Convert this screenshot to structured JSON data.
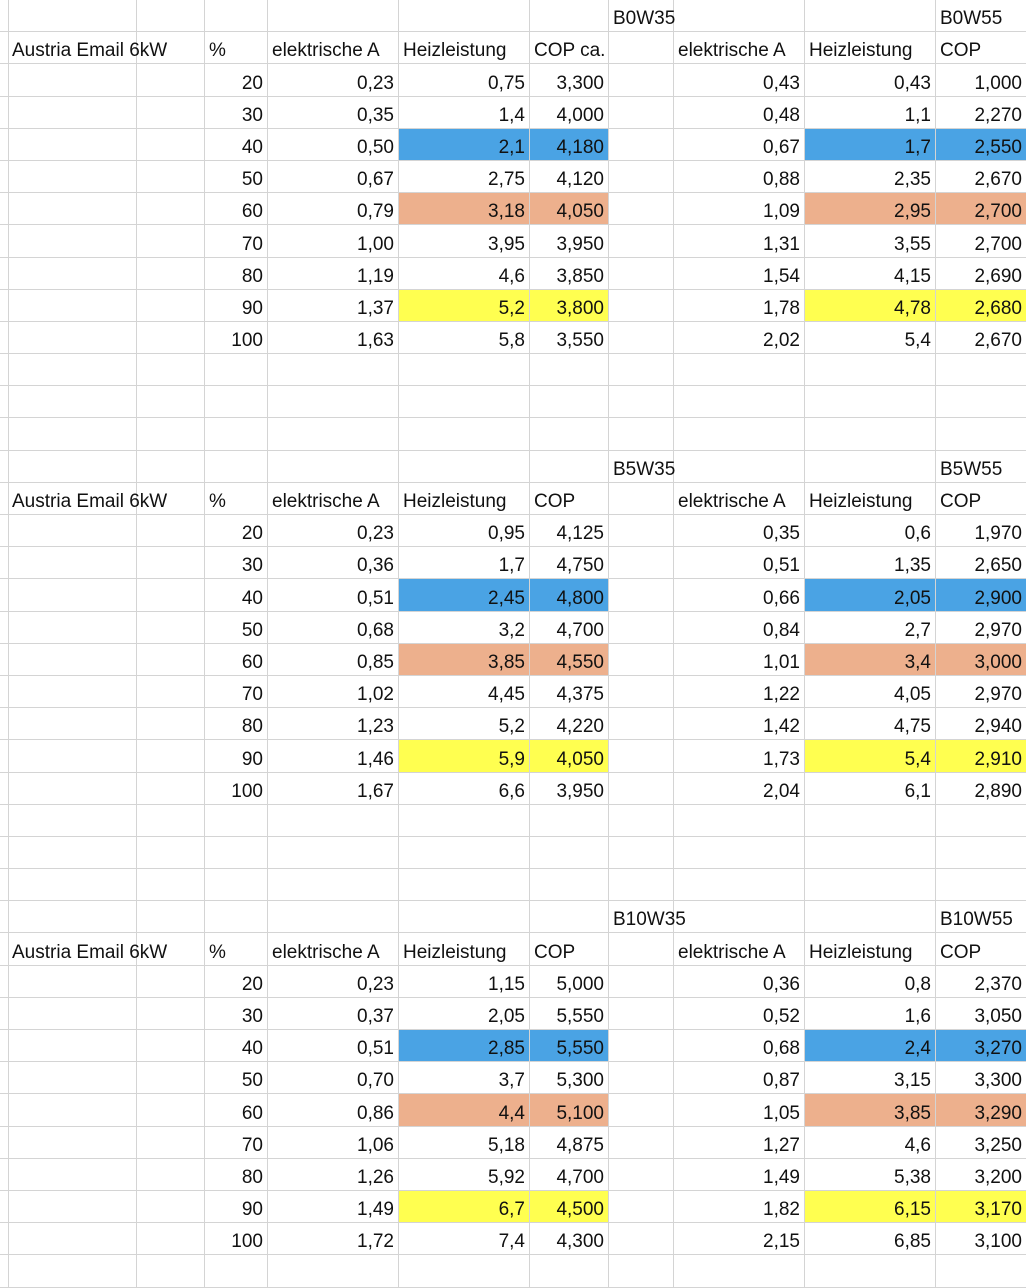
{
  "colors": {
    "highlight_40": "#4aa3e4",
    "highlight_60": "#edb08d",
    "highlight_90": "#ffff50",
    "gridline": "#d4d4d4"
  },
  "blocks": [
    {
      "label": "Austria Email 6kW",
      "pct_header": "%",
      "left": {
        "condition": "B0W35",
        "headers": [
          "elektrische A",
          "Heizleistung",
          "COP ca."
        ],
        "rows": [
          [
            "0,23",
            "0,75",
            "3,300"
          ],
          [
            "0,35",
            "1,4",
            "4,000"
          ],
          [
            "0,50",
            "2,1",
            "4,180"
          ],
          [
            "0,67",
            "2,75",
            "4,120"
          ],
          [
            "0,79",
            "3,18",
            "4,050"
          ],
          [
            "1,00",
            "3,95",
            "3,950"
          ],
          [
            "1,19",
            "4,6",
            "3,850"
          ],
          [
            "1,37",
            "5,2",
            "3,800"
          ],
          [
            "1,63",
            "5,8",
            "3,550"
          ]
        ]
      },
      "right": {
        "condition": "B0W55",
        "headers": [
          "elektrische A",
          "Heizleistung",
          "COP"
        ],
        "rows": [
          [
            "0,43",
            "0,43",
            "1,000"
          ],
          [
            "0,48",
            "1,1",
            "2,270"
          ],
          [
            "0,67",
            "1,7",
            "2,550"
          ],
          [
            "0,88",
            "2,35",
            "2,670"
          ],
          [
            "1,09",
            "2,95",
            "2,700"
          ],
          [
            "1,31",
            "3,55",
            "2,700"
          ],
          [
            "1,54",
            "4,15",
            "2,690"
          ],
          [
            "1,78",
            "4,78",
            "2,680"
          ],
          [
            "2,02",
            "5,4",
            "2,670"
          ]
        ]
      },
      "percent": [
        "20",
        "30",
        "40",
        "50",
        "60",
        "70",
        "80",
        "90",
        "100"
      ]
    },
    {
      "label": "Austria Email 6kW",
      "pct_header": "%",
      "left": {
        "condition": "B5W35",
        "headers": [
          "elektrische A",
          "Heizleistung",
          "COP"
        ],
        "rows": [
          [
            "0,23",
            "0,95",
            "4,125"
          ],
          [
            "0,36",
            "1,7",
            "4,750"
          ],
          [
            "0,51",
            "2,45",
            "4,800"
          ],
          [
            "0,68",
            "3,2",
            "4,700"
          ],
          [
            "0,85",
            "3,85",
            "4,550"
          ],
          [
            "1,02",
            "4,45",
            "4,375"
          ],
          [
            "1,23",
            "5,2",
            "4,220"
          ],
          [
            "1,46",
            "5,9",
            "4,050"
          ],
          [
            "1,67",
            "6,6",
            "3,950"
          ]
        ]
      },
      "right": {
        "condition": "B5W55",
        "headers": [
          "elektrische A",
          "Heizleistung",
          "COP"
        ],
        "rows": [
          [
            "0,35",
            "0,6",
            "1,970"
          ],
          [
            "0,51",
            "1,35",
            "2,650"
          ],
          [
            "0,66",
            "2,05",
            "2,900"
          ],
          [
            "0,84",
            "2,7",
            "2,970"
          ],
          [
            "1,01",
            "3,4",
            "3,000"
          ],
          [
            "1,22",
            "4,05",
            "2,970"
          ],
          [
            "1,42",
            "4,75",
            "2,940"
          ],
          [
            "1,73",
            "5,4",
            "2,910"
          ],
          [
            "2,04",
            "6,1",
            "2,890"
          ]
        ]
      },
      "percent": [
        "20",
        "30",
        "40",
        "50",
        "60",
        "70",
        "80",
        "90",
        "100"
      ]
    },
    {
      "label": "Austria Email 6kW",
      "pct_header": "%",
      "left": {
        "condition": "B10W35",
        "headers": [
          "elektrische A",
          "Heizleistung",
          "COP"
        ],
        "rows": [
          [
            "0,23",
            "1,15",
            "5,000"
          ],
          [
            "0,37",
            "2,05",
            "5,550"
          ],
          [
            "0,51",
            "2,85",
            "5,550"
          ],
          [
            "0,70",
            "3,7",
            "5,300"
          ],
          [
            "0,86",
            "4,4",
            "5,100"
          ],
          [
            "1,06",
            "5,18",
            "4,875"
          ],
          [
            "1,26",
            "5,92",
            "4,700"
          ],
          [
            "1,49",
            "6,7",
            "4,500"
          ],
          [
            "1,72",
            "7,4",
            "4,300"
          ]
        ]
      },
      "right": {
        "condition": "B10W55",
        "headers": [
          "elektrische A",
          "Heizleistung",
          "COP"
        ],
        "rows": [
          [
            "0,36",
            "0,8",
            "2,370"
          ],
          [
            "0,52",
            "1,6",
            "3,050"
          ],
          [
            "0,68",
            "2,4",
            "3,270"
          ],
          [
            "0,87",
            "3,15",
            "3,300"
          ],
          [
            "1,05",
            "3,85",
            "3,290"
          ],
          [
            "1,27",
            "4,6",
            "3,250"
          ],
          [
            "1,49",
            "5,38",
            "3,200"
          ],
          [
            "1,82",
            "6,15",
            "3,170"
          ],
          [
            "2,15",
            "6,85",
            "3,100"
          ]
        ]
      },
      "percent": [
        "20",
        "30",
        "40",
        "50",
        "60",
        "70",
        "80",
        "90",
        "100"
      ]
    }
  ]
}
